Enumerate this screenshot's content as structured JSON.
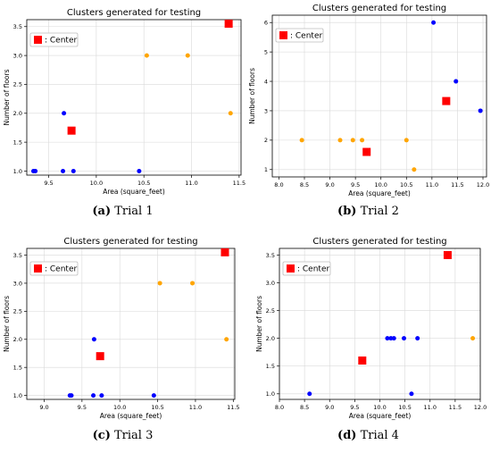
{
  "chart_data": [
    {
      "type": "scatter",
      "title": "Clusters generated for testing",
      "xlabel": "Area (square_feet)",
      "ylabel": "Number of floors",
      "caption_letter": "(a)",
      "caption_text": "Trial 1",
      "legend": {
        "label": ": Center",
        "placement": "top-left"
      },
      "xlim": [
        9.27,
        11.52
      ],
      "ylim": [
        0.93,
        3.62
      ],
      "xticks": [
        9.5,
        10.0,
        10.5,
        11.0,
        11.5
      ],
      "xtick_labels": [
        "9.5",
        "10.0",
        "10.5",
        "11.0",
        "11.5"
      ],
      "yticks": [
        1.0,
        1.5,
        2.0,
        2.5,
        3.0,
        3.5
      ],
      "ytick_labels": [
        "1.0",
        "1.5",
        "2.0",
        "2.5",
        "3.0",
        "3.5"
      ],
      "series": [
        {
          "color": "#0000ff",
          "marker": "circle",
          "points": [
            [
              9.34,
              1.0
            ],
            [
              9.36,
              1.0
            ],
            [
              9.65,
              1.0
            ],
            [
              9.66,
              2.0
            ],
            [
              9.76,
              1.0
            ],
            [
              10.45,
              1.0
            ]
          ]
        },
        {
          "color": "#ffa500",
          "marker": "circle",
          "points": [
            [
              10.53,
              3.0
            ],
            [
              10.96,
              3.0
            ],
            [
              11.41,
              2.0
            ]
          ]
        },
        {
          "color": "#ff0000",
          "marker": "square",
          "points": [
            [
              9.74,
              1.7
            ],
            [
              11.39,
              3.55
            ]
          ]
        }
      ]
    },
    {
      "type": "scatter",
      "title": "Clusters generated for testing",
      "xlabel": "Area (square_feet)",
      "ylabel": "Number of floors",
      "caption_letter": "(b)",
      "caption_text": "Trial 2",
      "legend": {
        "label": ": Center",
        "placement": "top-left"
      },
      "xlim": [
        7.87,
        12.07
      ],
      "ylim": [
        0.75,
        6.25
      ],
      "xticks": [
        8.0,
        8.5,
        9.0,
        9.5,
        10.0,
        10.5,
        11.0,
        11.5,
        12.0
      ],
      "xtick_labels": [
        "8.0",
        "8.5",
        "9.0",
        "9.5",
        "10.0",
        "10.5",
        "11.0",
        "11.5",
        "12.0"
      ],
      "yticks": [
        1,
        2,
        3,
        4,
        5,
        6
      ],
      "ytick_labels": [
        "1",
        "2",
        "3",
        "4",
        "5",
        "6"
      ],
      "series": [
        {
          "color": "#0000ff",
          "marker": "circle",
          "points": [
            [
              11.03,
              6.0
            ],
            [
              11.47,
              4.0
            ],
            [
              11.95,
              3.0
            ]
          ]
        },
        {
          "color": "#ffa500",
          "marker": "circle",
          "points": [
            [
              8.45,
              2.0
            ],
            [
              9.2,
              2.0
            ],
            [
              9.45,
              2.0
            ],
            [
              9.63,
              2.0
            ],
            [
              10.5,
              2.0
            ],
            [
              10.65,
              1.0
            ]
          ]
        },
        {
          "color": "#ff0000",
          "marker": "square",
          "points": [
            [
              9.72,
              1.6
            ],
            [
              11.28,
              3.33
            ]
          ]
        }
      ]
    },
    {
      "type": "scatter",
      "title": "Clusters generated for testing",
      "xlabel": "Area (square_feet)",
      "ylabel": "Number of floors",
      "caption_letter": "(c)",
      "caption_text": "Trial 3",
      "legend": {
        "label": ": Center",
        "placement": "top-left"
      },
      "xlim": [
        8.77,
        11.52
      ],
      "ylim": [
        0.93,
        3.62
      ],
      "xticks": [
        9.0,
        9.5,
        10.0,
        10.5,
        11.0,
        11.5
      ],
      "xtick_labels": [
        "9.0",
        "9.5",
        "10.0",
        "10.5",
        "11.0",
        "11.5"
      ],
      "yticks": [
        1.0,
        1.5,
        2.0,
        2.5,
        3.0,
        3.5
      ],
      "ytick_labels": [
        "1.0",
        "1.5",
        "2.0",
        "2.5",
        "3.0",
        "3.5"
      ],
      "series": [
        {
          "color": "#0000ff",
          "marker": "circle",
          "points": [
            [
              9.34,
              1.0
            ],
            [
              9.36,
              1.0
            ],
            [
              9.65,
              1.0
            ],
            [
              9.66,
              2.0
            ],
            [
              9.76,
              1.0
            ],
            [
              10.45,
              1.0
            ]
          ]
        },
        {
          "color": "#ffa500",
          "marker": "circle",
          "points": [
            [
              10.53,
              3.0
            ],
            [
              10.96,
              3.0
            ],
            [
              11.41,
              2.0
            ]
          ]
        },
        {
          "color": "#ff0000",
          "marker": "square",
          "points": [
            [
              9.74,
              1.7
            ],
            [
              11.39,
              3.55
            ]
          ]
        }
      ]
    },
    {
      "type": "scatter",
      "title": "Clusters generated for testing",
      "xlabel": "Area (square_feet)",
      "ylabel": "Number of floors",
      "caption_letter": "(d)",
      "caption_text": "Trial 4",
      "legend": {
        "label": ": Center",
        "placement": "top-left"
      },
      "xlim": [
        8.0,
        12.0
      ],
      "ylim": [
        0.9,
        3.62
      ],
      "xticks": [
        8.0,
        8.5,
        9.0,
        9.5,
        10.0,
        10.5,
        11.0,
        11.5,
        12.0
      ],
      "xtick_labels": [
        "8.0",
        "8.5",
        "9.0",
        "9.5",
        "10.0",
        "10.5",
        "11.0",
        "11.5",
        "12.0"
      ],
      "yticks": [
        1.0,
        1.5,
        2.0,
        2.5,
        3.0,
        3.5
      ],
      "ytick_labels": [
        "1.0",
        "1.5",
        "2.0",
        "2.5",
        "3.0",
        "3.5"
      ],
      "series": [
        {
          "color": "#0000ff",
          "marker": "circle",
          "points": [
            [
              8.6,
              1.0
            ],
            [
              10.15,
              2.0
            ],
            [
              10.22,
              2.0
            ],
            [
              10.28,
              2.0
            ],
            [
              10.48,
              2.0
            ],
            [
              10.63,
              1.0
            ],
            [
              10.75,
              2.0
            ]
          ]
        },
        {
          "color": "#ffa500",
          "marker": "circle",
          "points": [
            [
              11.85,
              2.0
            ]
          ]
        },
        {
          "color": "#ff0000",
          "marker": "square",
          "points": [
            [
              9.65,
              1.6
            ],
            [
              11.35,
              3.5
            ]
          ]
        }
      ]
    }
  ]
}
